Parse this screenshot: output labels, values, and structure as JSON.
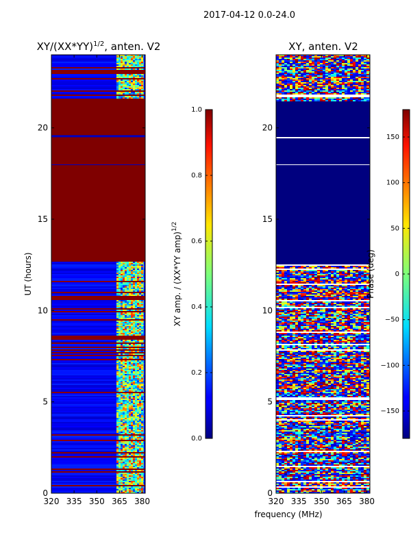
{
  "figure_title": "2017-04-12 0.0-24.0",
  "shared_xlabel": "frequency (MHz)",
  "chart_data": [
    {
      "type": "heatmap",
      "id": "amp",
      "title_main": "XY/(XX*YY)",
      "title_exp": "1/2",
      "title_suffix": ", anten. V2",
      "ylabel": "UT (hours)",
      "xlim": [
        320,
        382
      ],
      "ylim": [
        0,
        24
      ],
      "xticks": [
        320,
        335,
        350,
        365,
        380
      ],
      "yticks": [
        0,
        5,
        10,
        15,
        20
      ],
      "colorbar": {
        "label_main": "XY amp. / (XX*YY amp)",
        "label_exp": "1/2",
        "range": [
          0.0,
          1.0
        ],
        "ticks": [
          "0.0",
          "0.2",
          "0.4",
          "0.6",
          "0.8",
          "1.0"
        ],
        "tick_values": [
          0.0,
          0.2,
          0.4,
          0.6,
          0.8,
          1.0
        ],
        "colormap": "jet"
      },
      "saturated_bands_hours": [
        [
          12.7,
          21.6
        ],
        [
          19.6,
          19.8
        ]
      ],
      "active_freq_range_mhz": [
        363,
        381
      ]
    },
    {
      "type": "heatmap",
      "id": "phase",
      "title": "XY, anten. V2",
      "xlim": [
        320,
        382
      ],
      "ylim": [
        0,
        24
      ],
      "xticks": [
        320,
        335,
        350,
        365,
        380
      ],
      "yticks": [
        0,
        5,
        10,
        15,
        20
      ],
      "colorbar": {
        "label": "Phase (deg)",
        "range": [
          -180,
          180
        ],
        "ticks": [
          "150",
          "100",
          "50",
          "0",
          "−50",
          "−100",
          "−150"
        ],
        "tick_values": [
          150,
          100,
          50,
          0,
          -50,
          -100,
          -150
        ],
        "colormap": "jet"
      },
      "uniform_band_hours": [
        12.6,
        21.5
      ]
    }
  ]
}
